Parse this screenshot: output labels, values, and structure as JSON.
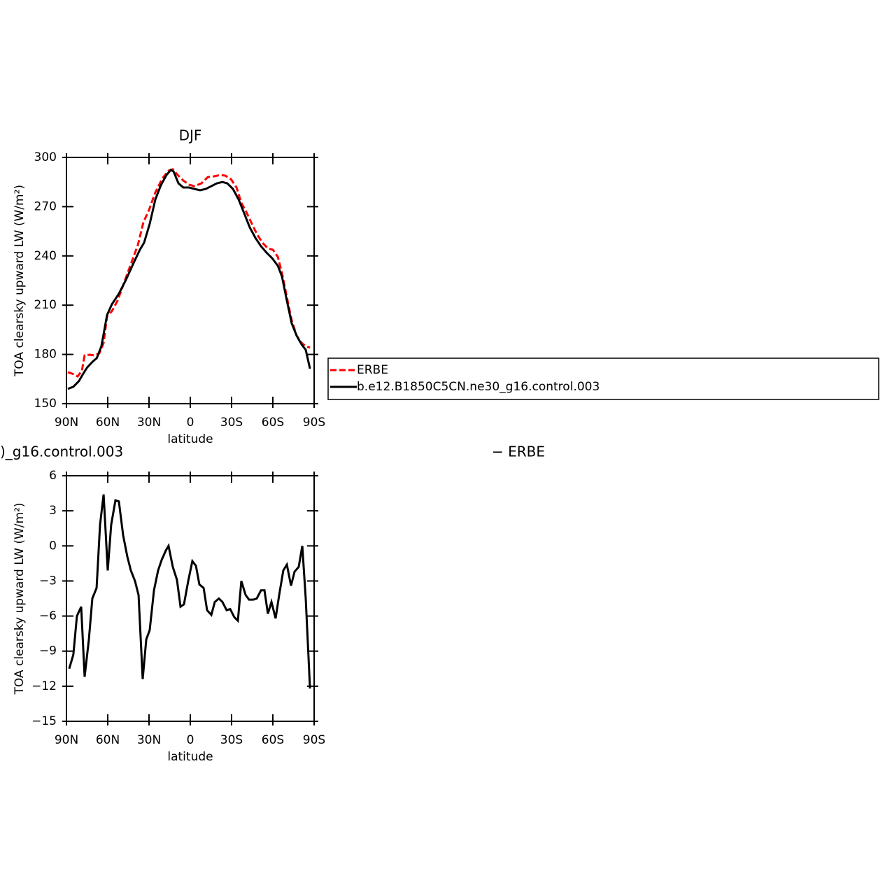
{
  "chart_data": [
    {
      "type": "line",
      "title": "DJF",
      "xlabel": "latitude",
      "ylabel": "TOA clearsky upward LW (W/m²)",
      "xlim": [
        90,
        -90
      ],
      "xticks": [
        {
          "value": 90,
          "label": "90N"
        },
        {
          "value": 60,
          "label": "60N"
        },
        {
          "value": 30,
          "label": "30N"
        },
        0,
        {
          "value": -30,
          "label": "30S"
        },
        {
          "value": -60,
          "label": "60S"
        },
        {
          "value": -90,
          "label": "90S"
        }
      ],
      "ylim": [
        150,
        300
      ],
      "yticks": [
        150,
        180,
        210,
        240,
        270,
        300
      ],
      "legend": "right",
      "series": [
        {
          "name": "ERBE",
          "color": "#ff0000",
          "dashed": true,
          "x": [
            89,
            85,
            81.9,
            78.8,
            76.8,
            73.2,
            69.7,
            66.1,
            63,
            60.5,
            57,
            52.9,
            48.3,
            42.7,
            38.1,
            34.1,
            30,
            25.4,
            20.3,
            15.8,
            12.7,
            9.2,
            5.1,
            1,
            -3,
            -8.1,
            -12.7,
            -17.3,
            -21.9,
            -25.4,
            -29.5,
            -33.6,
            -37.1,
            -40.7,
            -44.8,
            -48.8,
            -52.9,
            -56.4,
            -60,
            -63.6,
            -66.6,
            -70.2,
            -73.7,
            -77.3,
            -80.8,
            -83.9,
            -87
          ],
          "values": [
            169.2,
            168,
            166.6,
            170,
            179.4,
            179.8,
            179.4,
            180.7,
            187,
            203.3,
            206.3,
            212.7,
            223.3,
            236.1,
            246.7,
            260.4,
            268,
            278.7,
            287.2,
            291.9,
            292.8,
            289.3,
            285.9,
            283.4,
            282.5,
            284.2,
            288,
            288.5,
            289.3,
            288.9,
            286.8,
            281.7,
            272.3,
            266.8,
            259.5,
            252.7,
            247.6,
            244.6,
            243.8,
            239.5,
            229.7,
            214.8,
            200.7,
            191.4,
            187.1,
            185,
            184.1
          ]
        },
        {
          "name": "b.e12.B1850C5CN.ne30_g16.control.003",
          "color": "#000000",
          "dashed": false,
          "x": [
            89,
            85,
            81,
            78,
            75,
            71,
            68,
            64.6,
            60.5,
            57,
            51.9,
            46.8,
            41.7,
            36.6,
            33.6,
            29.5,
            25.4,
            21.4,
            17.3,
            14.2,
            12.2,
            8.6,
            5.1,
            1,
            -3,
            -7.1,
            -11.2,
            -15.3,
            -19.3,
            -23.4,
            -26.9,
            -31,
            -35.1,
            -39.2,
            -43.2,
            -47.3,
            -51.4,
            -55.4,
            -59.5,
            -63.6,
            -66.6,
            -70.2,
            -73.7,
            -77.3,
            -80.8,
            -83.9,
            -87
          ],
          "values": [
            159,
            160.3,
            163.7,
            168,
            172,
            175.6,
            177.7,
            185,
            204,
            210.5,
            217,
            225.4,
            234.8,
            243.8,
            248,
            259.5,
            274.4,
            283,
            289.3,
            292.3,
            291.5,
            284.2,
            281.7,
            281.7,
            280.8,
            280,
            280.8,
            282.5,
            284.2,
            285,
            284.2,
            280.8,
            274.4,
            265.9,
            257.4,
            251,
            245.9,
            242,
            238.6,
            234,
            227.6,
            212.7,
            199,
            191.4,
            186.2,
            182.8,
            171.3
          ]
        }
      ]
    },
    {
      "type": "line",
      "title_left": ")_g16.control.003",
      "title_right": "−  ERBE",
      "xlabel": "latitude",
      "ylabel": "TOA clearsky upward LW (W/m²)",
      "xlim": [
        90,
        -90
      ],
      "xticks": [
        {
          "value": 90,
          "label": "90N"
        },
        {
          "value": 60,
          "label": "60N"
        },
        {
          "value": 30,
          "label": "30N"
        },
        0,
        {
          "value": -30,
          "label": "30S"
        },
        {
          "value": -60,
          "label": "60S"
        },
        {
          "value": -90,
          "label": "90S"
        }
      ],
      "ylim": [
        -15,
        6
      ],
      "yticks": [
        {
          "value": -15,
          "label": "−15"
        },
        {
          "value": -12,
          "label": "−12"
        },
        {
          "value": -9,
          "label": "−9"
        },
        {
          "value": -6,
          "label": "−6"
        },
        {
          "value": -3,
          "label": "−3"
        },
        0,
        3,
        6
      ],
      "series": [
        {
          "color": "#000000",
          "dashed": false,
          "x": [
            88,
            85,
            82.4,
            79.3,
            76.8,
            73.7,
            71.2,
            68.1,
            65.6,
            63,
            60,
            57.5,
            54.4,
            51.9,
            48.8,
            45.8,
            43.2,
            40.2,
            37.6,
            34.6,
            32,
            29.5,
            26.4,
            23.4,
            20.8,
            17.8,
            15.8,
            12.7,
            9.7,
            7.1,
            4.6,
            1.5,
            -1.5,
            -4.1,
            -6.6,
            -9.7,
            -12.2,
            -15.3,
            -17.8,
            -20.8,
            -23.4,
            -26.4,
            -29,
            -32,
            -34.6,
            -37.1,
            -40.2,
            -42.7,
            -45.8,
            -48.3,
            -51.4,
            -53.9,
            -56.4,
            -59,
            -62,
            -64.6,
            -67.6,
            -70.2,
            -73.2,
            -75.8,
            -78.8,
            -81.4,
            -83.9,
            -87
          ],
          "values": [
            -10.5,
            -9.3,
            -6,
            -5.2,
            -11.2,
            -8,
            -4.5,
            -3.6,
            1.8,
            4.4,
            -2.1,
            1.8,
            3.9,
            3.8,
            0.9,
            -0.9,
            -2.1,
            -3,
            -4.2,
            -11.4,
            -8,
            -7.2,
            -3.8,
            -2.1,
            -1.2,
            -0.4,
            0,
            -1.8,
            -2.9,
            -5.2,
            -5,
            -3,
            -1.3,
            -1.7,
            -3.3,
            -3.6,
            -5.5,
            -5.9,
            -4.8,
            -4.5,
            -4.8,
            -5.5,
            -5.4,
            -6.1,
            -6.4,
            -3,
            -4.2,
            -4.6,
            -4.6,
            -4.5,
            -3.8,
            -3.8,
            -5.8,
            -4.8,
            -6.2,
            -4.2,
            -2.1,
            -1.6,
            -3.4,
            -2.2,
            -1.8,
            0,
            -4.5,
            -12.2
          ]
        }
      ]
    }
  ]
}
